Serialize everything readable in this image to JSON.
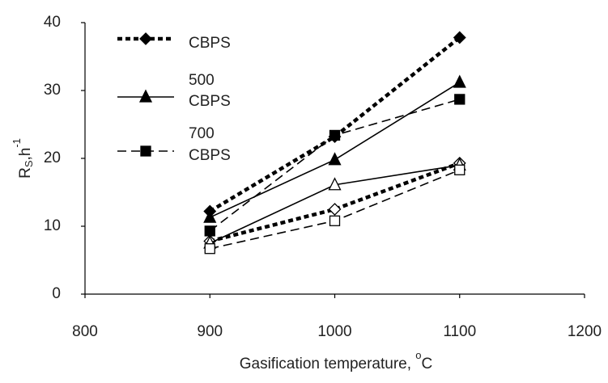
{
  "chart_data": {
    "type": "line",
    "xlabel": [
      "Gasification temperature, ",
      "o",
      "C"
    ],
    "ylabel": [
      "R",
      "S",
      ",h",
      "-1"
    ],
    "x": [
      900,
      1000,
      1100
    ],
    "xlim": [
      800,
      1200
    ],
    "xticks": [
      800,
      900,
      1000,
      1100,
      1200
    ],
    "ylim": [
      0,
      40
    ],
    "yticks": [
      0,
      10,
      20,
      30,
      40
    ],
    "grid": false,
    "annotations": [
      "500",
      "700"
    ],
    "series": [
      {
        "name": "CBPS",
        "color": "#000",
        "marker": "diamond",
        "line": "dotted",
        "filled": true,
        "values": [
          12.2,
          23.2,
          37.8
        ]
      },
      {
        "name": "CBPS",
        "color": "#000",
        "marker": "triangle",
        "line": "solid",
        "filled": true,
        "values": [
          11.3,
          19.8,
          31.2
        ]
      },
      {
        "name": "CBPS",
        "color": "#000",
        "marker": "square",
        "line": "dashed",
        "filled": true,
        "values": [
          9.3,
          23.4,
          28.7
        ]
      },
      {
        "color": "#000",
        "marker": "diamond",
        "line": "dotted",
        "filled": false,
        "values": [
          7.8,
          12.5,
          19.3
        ]
      },
      {
        "color": "#000",
        "marker": "triangle",
        "line": "solid",
        "filled": false,
        "values": [
          7.5,
          16.1,
          19.0
        ]
      },
      {
        "color": "#000",
        "marker": "square",
        "line": "dashed",
        "filled": false,
        "values": [
          6.7,
          10.8,
          18.3
        ]
      }
    ]
  }
}
